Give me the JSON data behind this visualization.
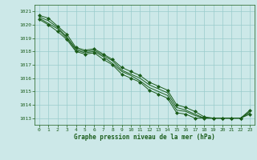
{
  "bg_color": "#cce8e8",
  "grid_color": "#99cccc",
  "line_color": "#1a5c1a",
  "marker_color": "#1a5c1a",
  "xlabel": "Graphe pression niveau de la mer (hPa)",
  "xlabel_color": "#1a5c1a",
  "tick_color": "#1a5c1a",
  "ylim": [
    1012.5,
    1021.5
  ],
  "xlim": [
    -0.5,
    23.5
  ],
  "yticks": [
    1013,
    1014,
    1015,
    1016,
    1017,
    1018,
    1019,
    1020,
    1021
  ],
  "xticks": [
    0,
    1,
    2,
    3,
    4,
    5,
    6,
    7,
    8,
    9,
    10,
    11,
    12,
    13,
    14,
    15,
    16,
    17,
    18,
    19,
    20,
    21,
    22,
    23
  ],
  "series": [
    [
      1020.7,
      1020.5,
      1019.9,
      1019.3,
      1018.3,
      1018.1,
      1018.2,
      1017.8,
      1017.4,
      1016.8,
      1016.5,
      1016.2,
      1015.7,
      1015.4,
      1015.1,
      1014.0,
      1013.8,
      1013.5,
      1013.1,
      1013.0,
      1013.0,
      1013.0,
      1013.0,
      1013.6
    ],
    [
      1020.6,
      1020.3,
      1019.8,
      1019.1,
      1018.2,
      1018.0,
      1018.1,
      1017.7,
      1017.3,
      1016.6,
      1016.3,
      1016.0,
      1015.5,
      1015.2,
      1014.9,
      1013.8,
      1013.6,
      1013.3,
      1013.0,
      1013.0,
      1013.0,
      1013.0,
      1013.0,
      1013.5
    ],
    [
      1020.5,
      1020.1,
      1019.7,
      1019.0,
      1018.1,
      1017.9,
      1018.0,
      1017.6,
      1017.1,
      1016.5,
      1016.2,
      1015.8,
      1015.3,
      1015.0,
      1014.7,
      1013.6,
      1013.5,
      1013.2,
      1013.0,
      1013.0,
      1013.0,
      1013.0,
      1013.0,
      1013.4
    ],
    [
      1020.4,
      1020.0,
      1019.5,
      1018.9,
      1018.0,
      1017.8,
      1017.9,
      1017.4,
      1017.0,
      1016.3,
      1016.0,
      1015.7,
      1015.1,
      1014.8,
      1014.5,
      1013.4,
      1013.3,
      1013.0,
      1013.0,
      1013.0,
      1013.0,
      1013.0,
      1013.0,
      1013.3
    ]
  ],
  "marker_series": [
    0,
    3
  ],
  "marker_style": "D",
  "marker_size": 2.0,
  "line_width": 0.7
}
